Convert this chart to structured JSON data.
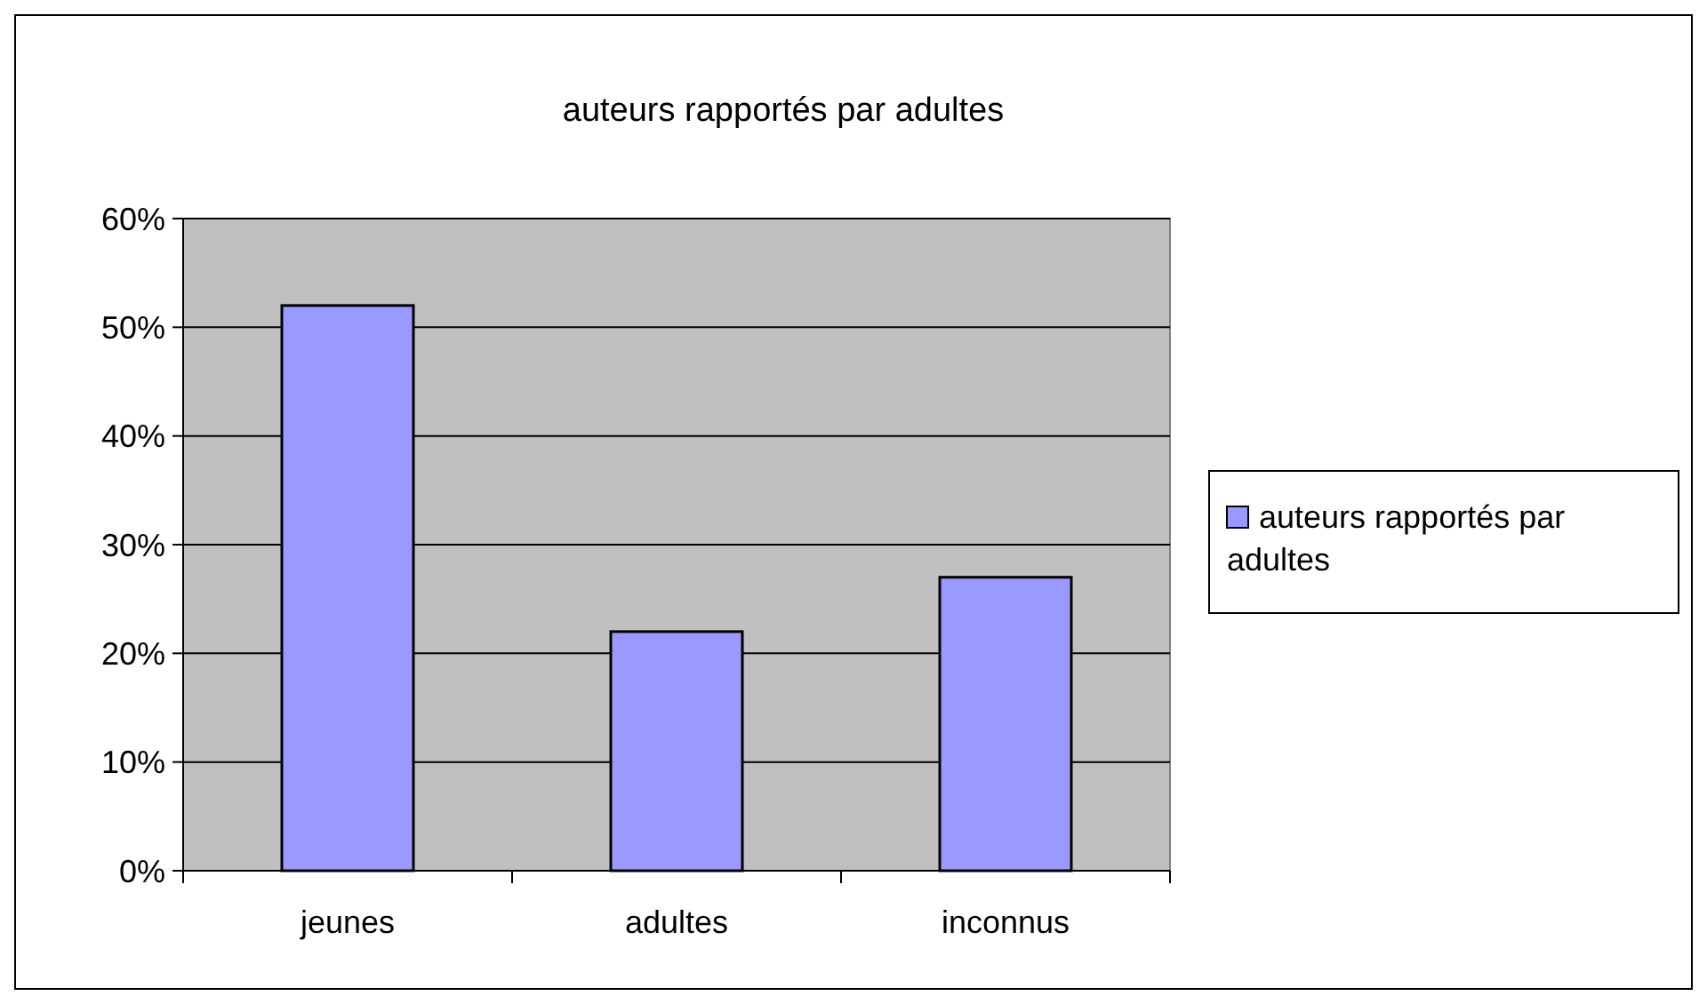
{
  "chart_data": {
    "type": "bar",
    "title": "auteurs rapportés par adultes",
    "categories": [
      "jeunes",
      "adultes",
      "inconnus"
    ],
    "series": [
      {
        "name": "auteurs rapportés par adultes",
        "color": "#9999ff",
        "values": [
          52,
          22,
          27
        ]
      }
    ],
    "ylim": [
      0,
      60
    ],
    "yticks": [
      {
        "value": 0,
        "label": "0%"
      },
      {
        "value": 10,
        "label": "10%"
      },
      {
        "value": 20,
        "label": "20%"
      },
      {
        "value": 30,
        "label": "30%"
      },
      {
        "value": 40,
        "label": "40%"
      },
      {
        "value": 50,
        "label": "50%"
      },
      {
        "value": 60,
        "label": "60%"
      }
    ],
    "grid": "y",
    "legend": "right"
  }
}
